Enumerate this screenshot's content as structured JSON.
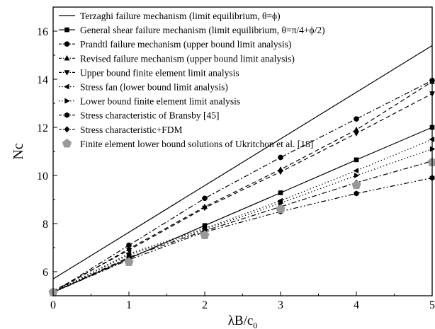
{
  "chart_data": {
    "type": "line",
    "title": "",
    "xlabel": "λB/c0",
    "xlabel_main": "λB/c",
    "xlabel_sub": "0",
    "ylabel": "Nc",
    "xlim": [
      0,
      5
    ],
    "ylim": [
      5,
      17
    ],
    "x_ticks": [
      "0",
      "1",
      "2",
      "3",
      "4",
      "5"
    ],
    "y_ticks": [
      "6",
      "8",
      "10",
      "12",
      "14",
      "16"
    ],
    "grid": false,
    "legend_position": "top-left",
    "series": [
      {
        "name": "Terzaghi failure mechanism (limit equilibrium, θ=ϕ)",
        "marker": "none",
        "dash": "solid",
        "color": "#000000",
        "x": [
          0,
          5
        ],
        "y": [
          5.7,
          15.4
        ]
      },
      {
        "name": "General shear failure mechanism (limit equilibrium, θ=π/4+ϕ/2)",
        "marker": "square",
        "dash": "solid",
        "color": "#000000",
        "x": [
          0,
          1,
          2,
          3,
          4,
          5
        ],
        "y": [
          5.14,
          6.55,
          7.92,
          9.28,
          10.65,
          12.0
        ]
      },
      {
        "name": "Prandtl failure mechanism (upper bound limit analysis)",
        "marker": "circle",
        "dash": "dashdot",
        "color": "#000000",
        "x": [
          0,
          1,
          2,
          3,
          4,
          5
        ],
        "y": [
          5.14,
          7.1,
          9.05,
          10.75,
          12.35,
          13.95
        ]
      },
      {
        "name": "Revised failure mechanism (upper bound limit analysis)",
        "marker": "triangle-up",
        "dash": "dashed",
        "color": "#000000",
        "x": [
          0,
          1,
          2,
          3,
          4,
          5
        ],
        "y": [
          5.14,
          6.95,
          8.7,
          10.25,
          11.9,
          13.9
        ]
      },
      {
        "name": "Upper bound finite element limit analysis",
        "marker": "triangle-down",
        "dash": "dashed",
        "color": "#000000",
        "x": [
          0,
          1,
          2,
          3,
          4,
          5
        ],
        "y": [
          5.2,
          6.9,
          8.65,
          10.15,
          11.75,
          13.4
        ]
      },
      {
        "name": "Stress fan (lower bound limit analysis)",
        "marker": "triangle-left",
        "dash": "dotted",
        "color": "#000000",
        "x": [
          0,
          1,
          2,
          3,
          4,
          5
        ],
        "y": [
          5.14,
          6.75,
          7.8,
          8.95,
          10.2,
          11.5
        ]
      },
      {
        "name": "Lower bound finite element limit analysis",
        "marker": "triangle-right",
        "dash": "dotted",
        "color": "#000000",
        "x": [
          0,
          1,
          2,
          3,
          4,
          5
        ],
        "y": [
          5.14,
          6.7,
          7.75,
          8.85,
          10.0,
          11.1
        ]
      },
      {
        "name": "Stress characteristic of Bransby [45]",
        "marker": "hexagon",
        "dash": "dashdotdot",
        "color": "#000000",
        "x": [
          0,
          1,
          2,
          3,
          4,
          5
        ],
        "y": [
          5.14,
          6.5,
          7.65,
          8.5,
          9.25,
          9.9
        ]
      },
      {
        "name": "Stress characteristic+FDM",
        "marker": "diamond",
        "dash": "dashdot",
        "color": "#000000",
        "x": [
          0,
          1,
          2,
          3,
          4,
          5
        ],
        "y": [
          5.14,
          6.6,
          7.7,
          8.7,
          9.7,
          10.6
        ]
      },
      {
        "name": "Finite element lower bound solutions of Ukritchon et al. [18]",
        "marker": "pentagon",
        "dash": "none",
        "color": "#999999",
        "x": [
          0,
          1,
          2,
          3,
          4,
          5
        ],
        "y": [
          5.14,
          6.4,
          7.52,
          8.6,
          9.6,
          10.55
        ]
      }
    ]
  }
}
